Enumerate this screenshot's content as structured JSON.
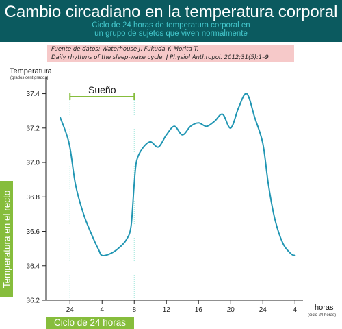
{
  "header": {
    "title": "Cambio circadiano en la temperatura corporal",
    "subtitle_line1": "Ciclo de 24 horas de temperatura corporal en",
    "subtitle_line2": "un grupo de sujetos que viven normalmente"
  },
  "source": {
    "line1": "Fuente de datos: Waterhouse J, Fukuda Y, Morita T.",
    "line2": "Daily rhythms of the sleep-wake cycle. J Physiol Anthropol. 2012;31(5):1–9"
  },
  "labels": {
    "y_title": "Temperatura",
    "y_unit": "(grados centígrados)",
    "y_side": "Temperatura en el recto",
    "x_title": "horas",
    "x_unit": "(ciclo 24 horas)",
    "cycle": "Ciclo de 24 horas",
    "sleep": "Sueño"
  },
  "colors": {
    "line": "#2196b3",
    "accent_green": "#86bd3c",
    "header": "#0b5a5f"
  },
  "chart_data": {
    "type": "line",
    "title": "Cambio circadiano en la temperatura corporal",
    "ylabel": "Temperatura en el recto",
    "xlabel": "horas",
    "ylim": [
      36.2,
      37.45
    ],
    "xlim": [
      21,
      53
    ],
    "yticks": [
      36.2,
      36.4,
      36.6,
      36.8,
      37.0,
      37.2,
      37.4
    ],
    "xticks": [
      24,
      28,
      32,
      36,
      40,
      44,
      48,
      52
    ],
    "xtick_labels": [
      "24",
      "4",
      "8",
      "12",
      "16",
      "20",
      "24",
      "4"
    ],
    "sleep_interval": [
      24,
      32
    ],
    "series": [
      {
        "x": [
          22.8,
          23.9,
          24.7,
          25.7,
          26.8,
          27.6,
          28.0,
          29.0,
          30.0,
          31.0,
          31.6,
          32.0,
          32.3,
          33.0,
          34.0,
          35.0,
          36.0,
          37.0,
          38.0,
          39.0,
          40.0,
          41.0,
          42.0,
          43.0,
          44.0,
          45.0,
          46.0,
          47.0,
          48.0,
          48.7,
          49.5,
          50.5,
          51.5,
          52.0
        ],
        "y": [
          37.26,
          37.11,
          36.87,
          36.7,
          36.57,
          36.49,
          36.46,
          36.47,
          36.5,
          36.55,
          36.63,
          36.88,
          37.01,
          37.08,
          37.12,
          37.09,
          37.16,
          37.21,
          37.16,
          37.21,
          37.23,
          37.21,
          37.24,
          37.28,
          37.2,
          37.32,
          37.4,
          37.26,
          37.11,
          36.87,
          36.67,
          36.53,
          36.47,
          36.46
        ]
      }
    ]
  }
}
